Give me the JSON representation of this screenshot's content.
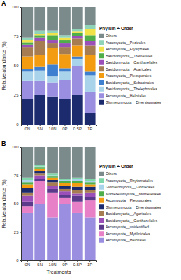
{
  "chart_data": [
    {
      "type": "bar",
      "stacked": true,
      "grid": false,
      "legend": "right",
      "title": "A",
      "y_label": "Relative abundance (%)",
      "legend_title": "Phylum + Order",
      "categories": [
        "0N",
        "5N",
        "10N",
        "0P",
        "0.5P",
        "1P"
      ],
      "ylim": [
        0,
        100
      ],
      "yticks": [
        0,
        25,
        50,
        75,
        100
      ],
      "series": [
        {
          "name": "Others",
          "color": "#7b8a8b",
          "values": [
            26,
            20,
            20,
            24,
            19,
            15
          ]
        },
        {
          "name": "Ascomycota__Pezizales",
          "color": "#8fd3b8",
          "values": [
            2,
            3,
            2,
            2,
            2,
            4
          ]
        },
        {
          "name": "Ascomycota__Erysiphales",
          "color": "#f2e24a",
          "values": [
            2,
            1,
            2,
            2,
            1,
            5
          ]
        },
        {
          "name": "Basidiomycota__Tremellales",
          "color": "#4fae4a",
          "values": [
            2,
            2,
            4,
            3,
            3,
            5
          ]
        },
        {
          "name": "Basidiomycota__Cantharellales",
          "color": "#9b4fb8",
          "values": [
            2,
            3,
            3,
            3,
            2,
            4
          ]
        },
        {
          "name": "Basidiomycota__Agaricales",
          "color": "#a67c52",
          "values": [
            8,
            12,
            4,
            6,
            6,
            8
          ]
        },
        {
          "name": "Ascomycota__Pleosporales",
          "color": "#f39c12",
          "values": [
            11,
            10,
            14,
            12,
            9,
            14
          ]
        },
        {
          "name": "Basidiomycota__Sebacinales",
          "color": "#3f7fd0",
          "values": [
            2,
            3,
            10,
            3,
            2,
            3
          ]
        },
        {
          "name": "Basidiomycota__Thelephorales",
          "color": "#a9d3ea",
          "values": [
            8,
            9,
            5,
            7,
            6,
            14
          ]
        },
        {
          "name": "Ascomycota__Helotiales",
          "color": "#9a8ee0",
          "values": [
            15,
            12,
            12,
            16,
            25,
            18
          ]
        },
        {
          "name": "Glomeromycota__Diversisporales",
          "color": "#1c2a6e",
          "values": [
            22,
            25,
            24,
            22,
            25,
            10
          ]
        }
      ]
    },
    {
      "type": "bar",
      "stacked": true,
      "grid": false,
      "legend": "right",
      "title": "B",
      "y_label": "Relative abundance (%)",
      "x_label": "Treatments",
      "legend_title": "Phylum + Order",
      "categories": [
        "0N",
        "5N",
        "10N",
        "0P",
        "0.5P",
        "1P"
      ],
      "ylim": [
        0,
        100
      ],
      "yticks": [
        0,
        25,
        50,
        75,
        100
      ],
      "series": [
        {
          "name": "Others",
          "color": "#7b8a8b",
          "values": [
            27,
            16,
            23,
            28,
            27,
            28
          ]
        },
        {
          "name": "Ascomycota__Rhytismatales",
          "color": "#7fd6a8",
          "values": [
            2,
            1,
            2,
            1,
            1,
            2
          ]
        },
        {
          "name": "Glomeromycota__Glomerales",
          "color": "#a9d3ea",
          "values": [
            2,
            1,
            1,
            1,
            2,
            1
          ]
        },
        {
          "name": "Mortierellomycota__Mortierellales",
          "color": "#4fae4a",
          "values": [
            2,
            1,
            1,
            2,
            2,
            2
          ]
        },
        {
          "name": "Ascomycota__Pleosporales",
          "color": "#f39c12",
          "values": [
            3,
            2,
            2,
            2,
            3,
            2
          ]
        },
        {
          "name": "Glomeromycota__Diversisporales",
          "color": "#1c2a6e",
          "values": [
            4,
            2,
            2,
            3,
            3,
            3
          ]
        },
        {
          "name": "Basidiomycota__Agaricales",
          "color": "#a67c52",
          "values": [
            3,
            2,
            3,
            2,
            3,
            2
          ]
        },
        {
          "name": "Basidiomycota__Cantharellales",
          "color": "#9b4fb8",
          "values": [
            5,
            3,
            3,
            3,
            2,
            4
          ]
        },
        {
          "name": "Ascomycota__unidentified",
          "color": "#5b3a8c",
          "values": [
            4,
            2,
            3,
            3,
            5,
            3
          ]
        },
        {
          "name": "Ascomycota__Mytilinidales",
          "color": "#e880c8",
          "values": [
            6,
            20,
            22,
            5,
            10,
            15
          ]
        },
        {
          "name": "Ascomycota__Helotiales",
          "color": "#9a8ee0",
          "values": [
            42,
            50,
            38,
            50,
            42,
            38
          ]
        }
      ]
    }
  ]
}
